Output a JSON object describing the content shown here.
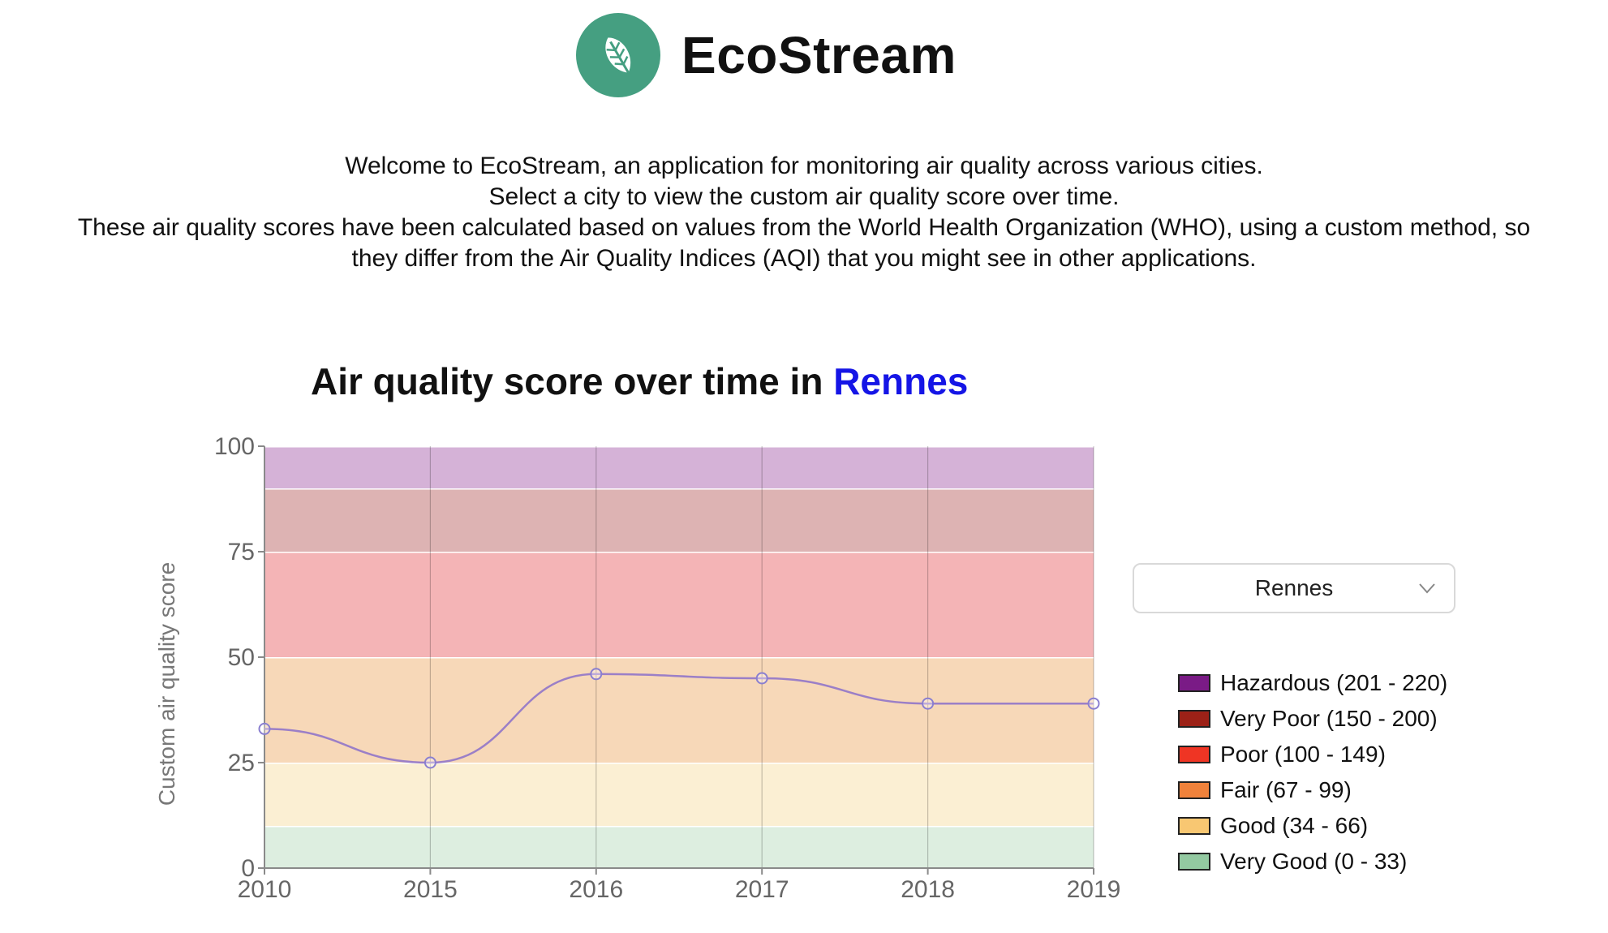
{
  "header": {
    "app_title": "EcoStream",
    "logo_icon": "leaf-icon",
    "brand_color": "#459f81"
  },
  "intro": {
    "lines": [
      "Welcome to EcoStream, an application for monitoring air quality across various cities.",
      "Select a city to view the custom air quality score over time.",
      "These air quality scores have been calculated based on values from the World Health Organization (WHO), using a custom method, so",
      "they differ from the Air Quality Indices (AQI) that you might see in other applications."
    ]
  },
  "chart_title": {
    "prefix": "Air quality score over time in ",
    "city": "Rennes",
    "city_color": "#1515e6"
  },
  "city_select": {
    "selected": "Rennes",
    "icon": "chevron-down-icon"
  },
  "legend": [
    {
      "label": "Hazardous (201 - 220)",
      "color": "#7a1b86"
    },
    {
      "label": "Very Poor (150 - 200)",
      "color": "#9c2117"
    },
    {
      "label": "Poor (100 - 149)",
      "color": "#ef3524"
    },
    {
      "label": "Fair (67 - 99)",
      "color": "#f0823b"
    },
    {
      "label": "Good (34 - 66)",
      "color": "#f8c772"
    },
    {
      "label": "Very Good (0 - 33)",
      "color": "#93c9a1"
    }
  ],
  "chart_data": {
    "type": "line",
    "ylabel": "Custom air quality score",
    "xlabel": "",
    "ylim": [
      0,
      100
    ],
    "yticks": [
      0,
      25,
      50,
      75,
      100
    ],
    "x": [
      "2010",
      "2015",
      "2016",
      "2017",
      "2018",
      "2019"
    ],
    "series": [
      {
        "values": [
          33,
          25,
          46,
          45,
          39,
          39
        ],
        "color": "#9b7fc7"
      }
    ],
    "bands": [
      {
        "from": 0,
        "to": 10,
        "color": "#ddeee0"
      },
      {
        "from": 10,
        "to": 25,
        "color": "#fbefd3"
      },
      {
        "from": 25,
        "to": 50,
        "color": "#f7d8b8"
      },
      {
        "from": 50,
        "to": 75,
        "color": "#f4b4b6"
      },
      {
        "from": 75,
        "to": 90,
        "color": "#ddb3b3"
      },
      {
        "from": 90,
        "to": 100,
        "color": "#d5b2d7"
      }
    ],
    "grid": true,
    "legend_placement": "right"
  }
}
